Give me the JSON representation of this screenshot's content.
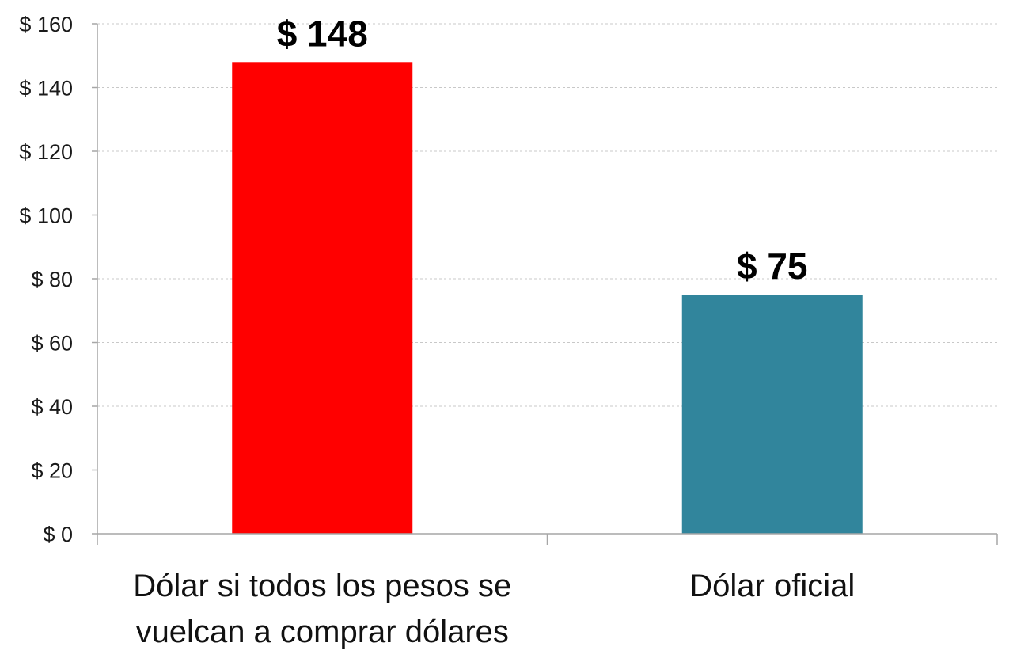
{
  "chart_data": {
    "type": "bar",
    "categories": [
      [
        "Dólar si todos los pesos se",
        "vuelcan a comprar dólares"
      ],
      [
        "Dólar oficial"
      ]
    ],
    "values": [
      148,
      75
    ],
    "data_labels": [
      "$ 148",
      "$ 75"
    ],
    "bar_colors": [
      "#ff0000",
      "#31859c"
    ],
    "ylim": [
      0,
      160
    ],
    "yticks": [
      0,
      20,
      40,
      60,
      80,
      100,
      120,
      140,
      160
    ],
    "ytick_labels": [
      "$ 0",
      "$ 20",
      "$ 40",
      "$ 60",
      "$ 80",
      "$ 100",
      "$ 120",
      "$ 140",
      "$ 160"
    ],
    "grid": true,
    "legend": "none",
    "title": "",
    "xlabel": "",
    "ylabel": ""
  }
}
